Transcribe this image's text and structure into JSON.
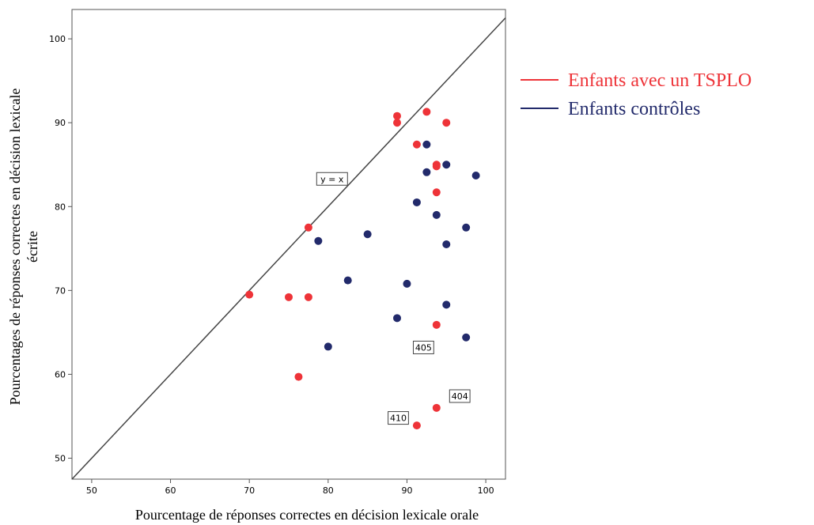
{
  "chart_data": {
    "type": "scatter",
    "xlabel": "Pourcentage de réponses correctes en décision lexicale orale",
    "ylabel_lines": [
      "Pourcentages de réponses correctes en décision lexicale",
      "écrite"
    ],
    "xlim": [
      47.5,
      102.5
    ],
    "ylim": [
      47.5,
      103.5
    ],
    "xticks": [
      "50",
      "60",
      "70",
      "80",
      "90",
      "100"
    ],
    "yticks": [
      "50",
      "60",
      "70",
      "80",
      "90",
      "100"
    ],
    "grid": false,
    "legend_position": "right",
    "reference_line": {
      "label": "y = x",
      "label_at": [
        80.5,
        83.3
      ]
    },
    "series": [
      {
        "name": "Enfants avec un TSPLO",
        "color": "#ee3338",
        "points": [
          [
            70,
            69.5
          ],
          [
            75,
            69.2
          ],
          [
            77.5,
            69.2
          ],
          [
            77.5,
            77.5
          ],
          [
            76.25,
            59.7
          ],
          [
            88.75,
            90.8
          ],
          [
            88.75,
            90
          ],
          [
            91.25,
            87.4
          ],
          [
            92.5,
            91.3
          ],
          [
            95,
            90
          ],
          [
            93.75,
            85
          ],
          [
            93.75,
            84.8
          ],
          [
            93.75,
            81.7
          ],
          [
            93.75,
            65.9
          ],
          [
            93.75,
            56
          ],
          [
            91.25,
            53.9
          ]
        ]
      },
      {
        "name": "Enfants contrôles",
        "color": "#222a6b",
        "points": [
          [
            92.5,
            87.4
          ],
          [
            95,
            85
          ],
          [
            92.5,
            84.1
          ],
          [
            98.75,
            83.7
          ],
          [
            91.25,
            80.5
          ],
          [
            93.75,
            79
          ],
          [
            97.5,
            77.5
          ],
          [
            95,
            75.5
          ],
          [
            78.75,
            75.9
          ],
          [
            85,
            76.7
          ],
          [
            82.5,
            71.2
          ],
          [
            90,
            70.8
          ],
          [
            95,
            68.3
          ],
          [
            88.75,
            66.7
          ],
          [
            97.5,
            64.4
          ],
          [
            80,
            63.3
          ]
        ]
      }
    ],
    "annotations": [
      {
        "text": "405",
        "at": [
          92.1,
          63.2
        ]
      },
      {
        "text": "404",
        "at": [
          96.7,
          57.4
        ]
      },
      {
        "text": "410",
        "at": [
          88.9,
          54.8
        ]
      }
    ]
  }
}
